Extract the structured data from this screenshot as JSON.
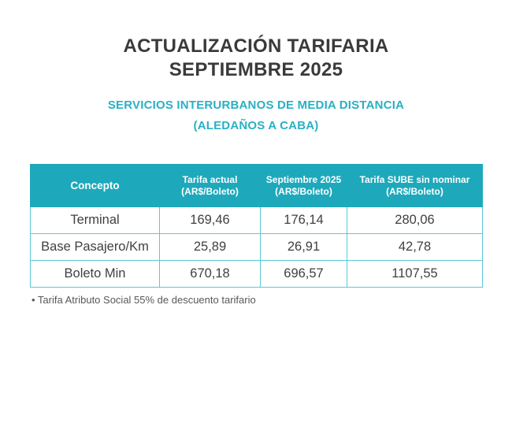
{
  "page": {
    "title_line1": "ACTUALIZACIÓN TARIFARIA",
    "title_line2": "SEPTIEMBRE 2025",
    "subtitle_line1": "SERVICIOS INTERURBANOS DE MEDIA DISTANCIA",
    "subtitle_line2": "(ALEDAÑOS A CABA)",
    "footnote": "• Tarifa Atributo Social 55% de descuento tarifario"
  },
  "colors": {
    "accent_teal": "#1da9bb",
    "border_teal": "#5bc8d7",
    "subtitle_teal": "#29b0c3",
    "title_dark": "#3a3a3c",
    "body_text": "#3f3f44"
  },
  "table": {
    "headers": [
      {
        "label": "Concepto",
        "sub": ""
      },
      {
        "label": "Tarifa actual",
        "sub": "(AR$/Boleto)"
      },
      {
        "label": "Septiembre 2025",
        "sub": "(AR$/Boleto)"
      },
      {
        "label": "Tarifa SUBE sin nominar",
        "sub": "(AR$/Boleto)"
      }
    ],
    "rows": [
      {
        "concepto": "Terminal",
        "tarifa_actual": "169,46",
        "septiembre_2025": "176,14",
        "tarifa_sube": "280,06"
      },
      {
        "concepto": "Base Pasajero/Km",
        "tarifa_actual": "25,89",
        "septiembre_2025": "26,91",
        "tarifa_sube": "42,78"
      },
      {
        "concepto": "Boleto Min",
        "tarifa_actual": "670,18",
        "septiembre_2025": "696,57",
        "tarifa_sube": "1107,55"
      }
    ]
  },
  "chart_data": {
    "type": "table",
    "title": "ACTUALIZACIÓN TARIFARIA SEPTIEMBRE 2025",
    "subtitle": "SERVICIOS INTERURBANOS DE MEDIA DISTANCIA (ALEDAÑOS A CABA)",
    "columns": [
      "Concepto",
      "Tarifa actual (AR$/Boleto)",
      "Septiembre 2025 (AR$/Boleto)",
      "Tarifa SUBE sin nominar (AR$/Boleto)"
    ],
    "rows": [
      [
        "Terminal",
        169.46,
        176.14,
        280.06
      ],
      [
        "Base Pasajero/Km",
        25.89,
        26.91,
        42.78
      ],
      [
        "Boleto Min",
        670.18,
        696.57,
        1107.55
      ]
    ],
    "note": "Tarifa Atributo Social 55% de descuento tarifario"
  }
}
